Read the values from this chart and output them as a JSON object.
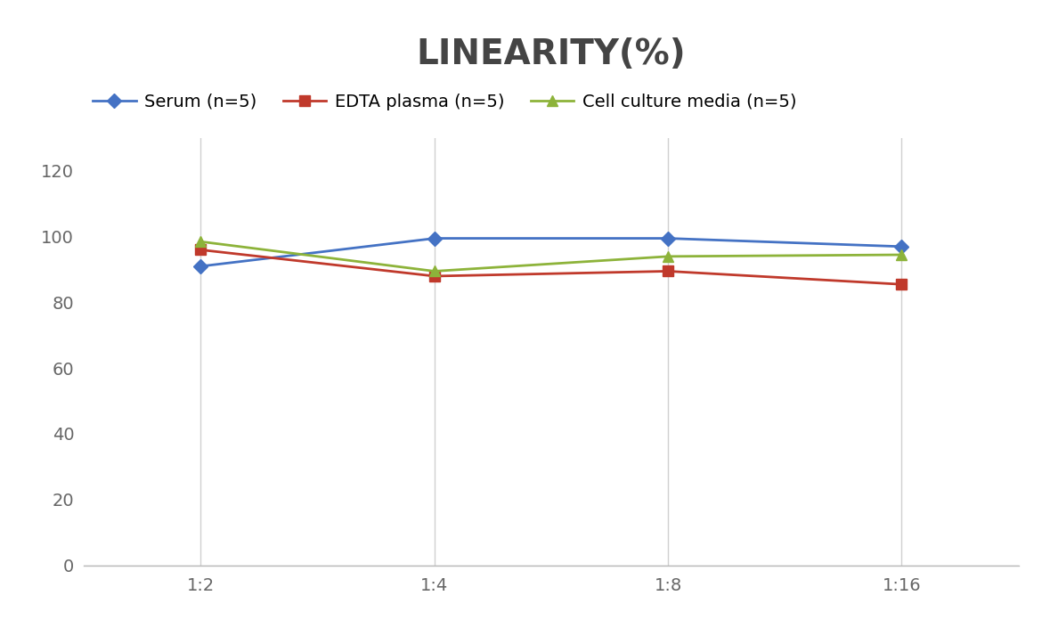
{
  "title": "LINEARITY(%)",
  "title_fontsize": 28,
  "title_fontweight": "bold",
  "x_labels": [
    "1:2",
    "1:4",
    "1:8",
    "1:16"
  ],
  "x_positions": [
    0,
    1,
    2,
    3
  ],
  "series": [
    {
      "label": "Serum (n=5)",
      "values": [
        91,
        99.5,
        99.5,
        97
      ],
      "color": "#4472C4",
      "marker": "D",
      "markersize": 8,
      "linewidth": 2.0
    },
    {
      "label": "EDTA plasma (n=5)",
      "values": [
        96,
        88,
        89.5,
        85.5
      ],
      "color": "#C0392B",
      "marker": "s",
      "markersize": 8,
      "linewidth": 2.0
    },
    {
      "label": "Cell culture media (n=5)",
      "values": [
        98.5,
        89.5,
        94,
        94.5
      ],
      "color": "#8DB33A",
      "marker": "^",
      "markersize": 8,
      "linewidth": 2.0
    }
  ],
  "ylim": [
    0,
    130
  ],
  "yticks": [
    0,
    20,
    40,
    60,
    80,
    100,
    120
  ],
  "grid_color": "#D0D0D0",
  "background_color": "#FFFFFF",
  "legend_fontsize": 14,
  "tick_fontsize": 14
}
